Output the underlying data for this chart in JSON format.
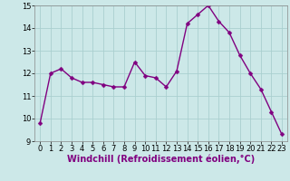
{
  "x": [
    0,
    1,
    2,
    3,
    4,
    5,
    6,
    7,
    8,
    9,
    10,
    11,
    12,
    13,
    14,
    15,
    16,
    17,
    18,
    19,
    20,
    21,
    22,
    23
  ],
  "y": [
    9.8,
    12.0,
    12.2,
    11.8,
    11.6,
    11.6,
    11.5,
    11.4,
    11.4,
    12.5,
    11.9,
    11.8,
    11.4,
    12.1,
    14.2,
    14.6,
    15.0,
    14.3,
    13.8,
    12.8,
    12.0,
    11.3,
    10.3,
    9.3
  ],
  "line_color": "#800080",
  "marker_color": "#800080",
  "bg_color": "#cce8e8",
  "grid_color": "#aacfcf",
  "xlabel": "Windchill (Refroidissement éolien,°C)",
  "xlim": [
    -0.5,
    23.5
  ],
  "ylim": [
    9,
    15
  ],
  "yticks": [
    9,
    10,
    11,
    12,
    13,
    14,
    15
  ],
  "xticks": [
    0,
    1,
    2,
    3,
    4,
    5,
    6,
    7,
    8,
    9,
    10,
    11,
    12,
    13,
    14,
    15,
    16,
    17,
    18,
    19,
    20,
    21,
    22,
    23
  ],
  "tick_label_fontsize": 6.0,
  "xlabel_fontsize": 7.0,
  "line_width": 1.0,
  "marker_size": 2.5,
  "fig_width": 3.2,
  "fig_height": 2.0,
  "dpi": 100
}
